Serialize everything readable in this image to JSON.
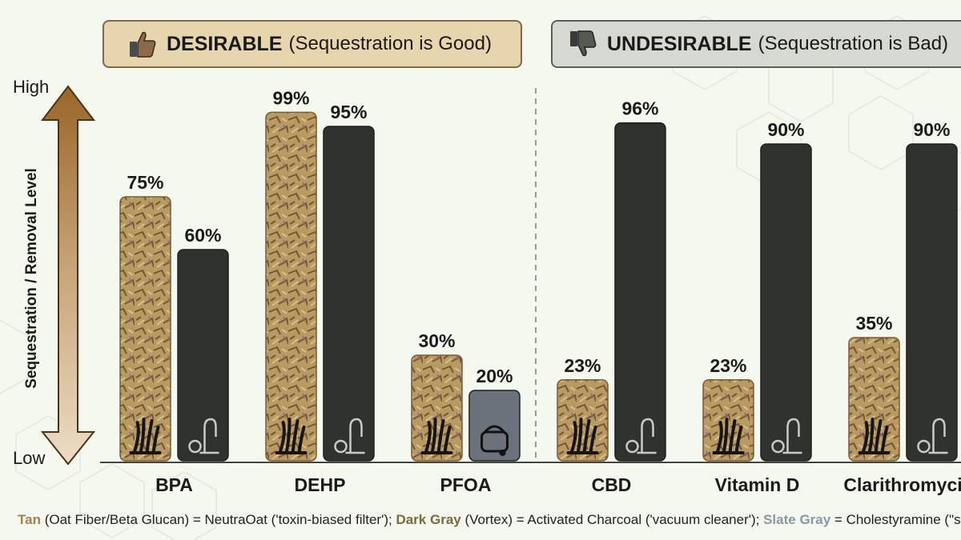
{
  "headers": {
    "desirable": {
      "title": "DESIRABLE",
      "subtitle": "(Sequestration is Good)",
      "icon": "thumbs-up-icon"
    },
    "undesirable": {
      "title": "UNDESIRABLE",
      "subtitle": "(Sequestration is Bad)",
      "icon": "thumbs-down-icon"
    }
  },
  "axis": {
    "high": "High",
    "low": "Low",
    "ylabel": "Sequestration / Removal Level"
  },
  "footer": {
    "tan_term": "Tan",
    "tan_desc": " (Oat Fiber/Beta Glucan) = NeutraOat ('toxin-biased filter'); ",
    "dark_term": "Dark Gray",
    "dark_desc": " (Vortex) = Activated Charcoal ('vacuum cleaner'); ",
    "slate_term": "Slate Gray",
    "slate_desc": " = Cholestyramine (\"shop"
  },
  "colors": {
    "tan": "#b89a63",
    "dark": "#303230",
    "slate": "#6c727b",
    "arrow": "#a8743a"
  },
  "chart_data": {
    "type": "bar",
    "categories": [
      "BPA",
      "DEHP",
      "PFOA",
      "CBD",
      "Vitamin D",
      "Clarithromyci"
    ],
    "groups": [
      {
        "name": "DESIRABLE (Sequestration is Good)",
        "categories": [
          "BPA",
          "DEHP",
          "PFOA"
        ]
      },
      {
        "name": "UNDESIRABLE (Sequestration is Bad)",
        "categories": [
          "CBD",
          "Vitamin D",
          "Clarithromyci"
        ]
      }
    ],
    "series": [
      {
        "name": "Oat Fiber/Beta Glucan (NeutraOat)",
        "color": "tan",
        "values": [
          75,
          99,
          30,
          23,
          23,
          35
        ],
        "labels": [
          "75%",
          "99%",
          "30%",
          "23%",
          "23%",
          "35%"
        ]
      },
      {
        "name": "Activated Charcoal / Cholestyramine",
        "colors": [
          "dark",
          "dark",
          "slate",
          "dark",
          "dark",
          "dark"
        ],
        "values": [
          60,
          95,
          20,
          96,
          90,
          90
        ],
        "labels": [
          "60%",
          "95%",
          "20%",
          "96%",
          "90%",
          "90%"
        ]
      }
    ],
    "ylabel": "Sequestration / Removal Level",
    "ylim": [
      0,
      100
    ],
    "grid": false
  }
}
